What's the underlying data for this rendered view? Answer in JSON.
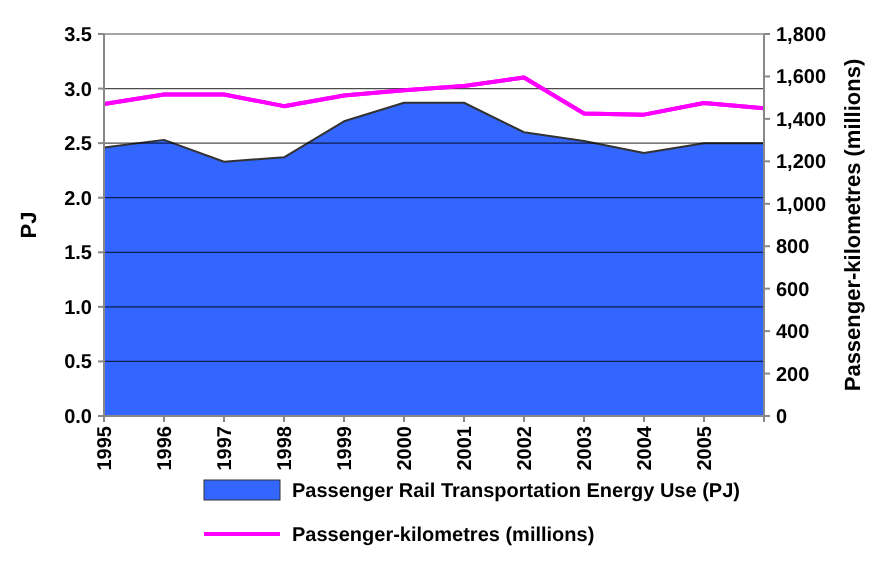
{
  "chart_data": {
    "type": "area",
    "categories": [
      "1995",
      "1996",
      "1997",
      "1998",
      "1999",
      "2000",
      "2001",
      "2002",
      "2003",
      "2004",
      "2005",
      null
    ],
    "series": [
      {
        "name": "Passenger Rail Transportation Energy Use (PJ)",
        "color": "#3366ff",
        "values": [
          2.46,
          2.53,
          2.33,
          2.37,
          2.7,
          2.87,
          2.87,
          2.6,
          2.52,
          2.41,
          2.5,
          2.5
        ]
      },
      {
        "name": "Passenger-kilometres (millions)",
        "type": "line",
        "axis": "y2",
        "color": "#ff00ff",
        "values": [
          1470,
          1515,
          1515,
          1460,
          1510,
          1535,
          1555,
          1595,
          1425,
          1420,
          1475,
          1450
        ]
      }
    ],
    "ylabel": "PJ",
    "y2label": "Passenger-kilometres (millions)",
    "ylim": [
      0,
      3.5
    ],
    "yticks": [
      {
        "value": 0,
        "label": "0.0"
      },
      {
        "value": 0.5,
        "label": "0.5"
      },
      {
        "value": 1,
        "label": "1.0"
      },
      {
        "value": 1.5,
        "label": "1.5"
      },
      {
        "value": 2,
        "label": "2.0"
      },
      {
        "value": 2.5,
        "label": "2.5"
      },
      {
        "value": 3,
        "label": "3.0"
      },
      {
        "value": 3.5,
        "label": "3.5"
      }
    ],
    "y2lim": [
      0,
      1800
    ],
    "y2ticks": [
      {
        "value": 0,
        "label": "0"
      },
      {
        "value": 200,
        "label": "200"
      },
      {
        "value": 400,
        "label": "400"
      },
      {
        "value": 600,
        "label": "600"
      },
      {
        "value": 800,
        "label": "800"
      },
      {
        "value": 1000,
        "label": "1,000"
      },
      {
        "value": 1200,
        "label": "1,200"
      },
      {
        "value": 1400,
        "label": "1,400"
      },
      {
        "value": 1600,
        "label": "1,600"
      },
      {
        "value": 1800,
        "label": "1,800"
      }
    ],
    "grid": "y",
    "legend": "bottom"
  }
}
